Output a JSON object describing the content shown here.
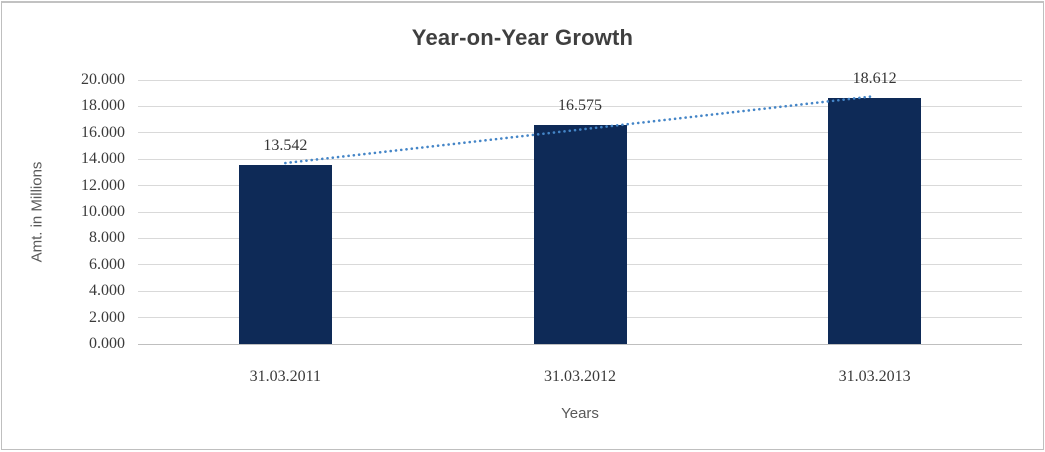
{
  "chart_data": {
    "type": "bar",
    "title": "Year-on-Year Growth",
    "categories": [
      "31.03.2011",
      "31.03.2012",
      "31.03.2013"
    ],
    "values": [
      13.542,
      16.575,
      18.612
    ],
    "data_labels": [
      "13.542",
      "16.575",
      "18.612"
    ],
    "xlabel": "Years",
    "ylabel": "Amt. in Millions",
    "ylim": [
      0,
      20
    ],
    "ytick_step": 2,
    "ytick_labels": [
      "0.000",
      "2.000",
      "4.000",
      "6.000",
      "8.000",
      "10.000",
      "12.000",
      "14.000",
      "16.000",
      "18.000",
      "20.000"
    ],
    "grid": true,
    "legend": "none",
    "trendline": {
      "type": "linear",
      "style": "dotted"
    },
    "colors": {
      "bar": "#0E2A57",
      "trendline": "#4485C7",
      "gridline": "#D9D9D9",
      "axis_line": "#BFBFBF",
      "title_text": "#3F3F3F",
      "tick_text": "#3A3A3A",
      "axis_title_text": "#595959",
      "frame_border": "#C2C2C2",
      "background": "#FFFFFF"
    }
  }
}
